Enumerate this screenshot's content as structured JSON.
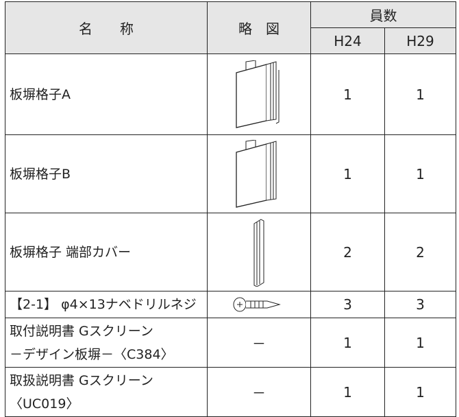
{
  "table": {
    "header": {
      "name": "名　　称",
      "diagram": "略　図",
      "count": "員数",
      "h24": "H24",
      "h29": "H29"
    },
    "rows": [
      {
        "name": [
          "板塀格子A"
        ],
        "h24": "1",
        "h29": "1"
      },
      {
        "name": [
          "板塀格子B"
        ],
        "h24": "1",
        "h29": "1"
      },
      {
        "name": [
          "板塀格子 端部カバー"
        ],
        "h24": "2",
        "h29": "2"
      },
      {
        "name": [
          "【2-1】 φ4×13ナベドリルネジ"
        ],
        "h24": "3",
        "h29": "3"
      },
      {
        "name": [
          "取付説明書 Gスクリーン",
          "－デザイン板塀－〈C384〉"
        ],
        "diagram": "－",
        "h24": "1",
        "h29": "1"
      },
      {
        "name": [
          "取扱説明書 Gスクリーン",
          "〈UC019〉"
        ],
        "diagram": "－",
        "h24": "1",
        "h29": "1"
      }
    ]
  }
}
